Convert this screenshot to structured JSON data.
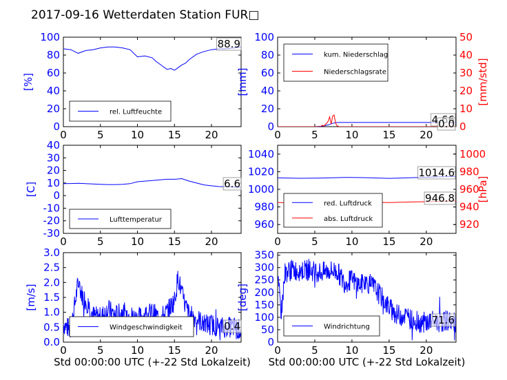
{
  "title": "2017-09-16 Wetterdaten Station FUR□",
  "colors": {
    "blue": "#0000ff",
    "red": "#ff0000",
    "black": "#000000"
  },
  "chart_data": [
    {
      "type": "line",
      "ylabel": "[%]",
      "xlim": [
        0,
        24
      ],
      "ylim": [
        0,
        100
      ],
      "xticks": [
        0,
        5,
        10,
        15,
        20
      ],
      "yticks": [
        0,
        20,
        40,
        60,
        80,
        100
      ],
      "legend": {
        "placement": "lower-left",
        "entries": [
          "rel. Luftfeuchte"
        ]
      },
      "last_value": "88.9",
      "series": [
        {
          "name": "rel. Luftfeuchte",
          "color": "#0000ff",
          "x": [
            0,
            1,
            2,
            3,
            4,
            5,
            6,
            7,
            8,
            9,
            10,
            11,
            12,
            12.5,
            13,
            13.5,
            14,
            14.5,
            15,
            15.5,
            16,
            16.5,
            17,
            18,
            19,
            20,
            21,
            22,
            23,
            24
          ],
          "y": [
            87,
            86,
            82,
            85,
            86,
            88,
            89,
            89,
            88,
            86,
            78,
            79,
            77,
            73,
            70,
            67,
            64,
            65,
            63,
            66,
            69,
            71,
            75,
            81,
            84,
            86,
            87,
            87,
            88,
            88.9
          ]
        }
      ]
    },
    {
      "type": "line",
      "ylabel": "[mm]",
      "y2label": "[mm/std]",
      "xlim": [
        0,
        24
      ],
      "ylim": [
        0,
        100
      ],
      "y2lim": [
        0,
        50
      ],
      "xticks": [
        0,
        5,
        10,
        15,
        20
      ],
      "yticks": [
        0,
        20,
        40,
        60,
        80,
        100
      ],
      "y2ticks": [
        0,
        10,
        20,
        30,
        40,
        50
      ],
      "legend": {
        "placement": "upper-left",
        "entries": [
          "kum. Niederschlag",
          "Niederschlagsrate"
        ]
      },
      "last_values": [
        "4.66",
        "0.0"
      ],
      "series": [
        {
          "name": "kum. Niederschlag",
          "color": "#0000ff",
          "axis": "left",
          "x": [
            0,
            5,
            6,
            6.5,
            7,
            7.5,
            8,
            24
          ],
          "y": [
            0,
            0,
            0.5,
            1.5,
            2.5,
            4,
            4.66,
            4.66
          ]
        },
        {
          "name": "Niederschlagsrate",
          "color": "#ff0000",
          "axis": "right",
          "x": [
            0,
            5,
            5.8,
            6,
            6.2,
            6.5,
            6.8,
            7,
            7.2,
            7.4,
            7.6,
            7.8,
            8,
            8.3,
            24
          ],
          "y": [
            0,
            0,
            0,
            0.8,
            0.3,
            1.5,
            3,
            5.5,
            1.5,
            5.8,
            6.5,
            2,
            0.5,
            0,
            0
          ]
        }
      ]
    },
    {
      "type": "line",
      "ylabel": "[C]",
      "xlim": [
        0,
        24
      ],
      "ylim": [
        -30,
        40
      ],
      "xticks": [
        0,
        5,
        10,
        15,
        20
      ],
      "yticks": [
        -30,
        -20,
        -10,
        0,
        10,
        20,
        30,
        40
      ],
      "legend": {
        "placement": "lower-left",
        "entries": [
          "Lufttemperatur"
        ]
      },
      "last_value": "6.6",
      "series": [
        {
          "name": "Lufttemperatur",
          "color": "#0000ff",
          "x": [
            0,
            1,
            2,
            3,
            4,
            5,
            6,
            7,
            8,
            9,
            10,
            11,
            12,
            13,
            14,
            15,
            16,
            17,
            18,
            19,
            20,
            21,
            22,
            23,
            24
          ],
          "y": [
            9.5,
            9.6,
            9.8,
            9.5,
            9.2,
            9,
            8.8,
            8.8,
            9,
            9.5,
            11,
            11.5,
            12,
            12.5,
            13,
            13,
            13.5,
            11.5,
            10,
            8.5,
            7.8,
            7.2,
            7,
            6.8,
            6.6
          ]
        }
      ]
    },
    {
      "type": "line",
      "ylabel": "",
      "y2label": "[hPa]",
      "xlim": [
        0,
        24
      ],
      "ylim": [
        950,
        1050
      ],
      "y2lim": [
        910,
        1010
      ],
      "xticks": [
        0,
        5,
        10,
        15,
        20
      ],
      "yticks": [
        960,
        980,
        1000,
        1020,
        1040
      ],
      "y2ticks": [
        920,
        940,
        960,
        980,
        1000
      ],
      "legend": {
        "placement": "lower-left",
        "entries": [
          "red. Luftdruck",
          "abs. Luftdruck"
        ]
      },
      "last_values": [
        "1014.6",
        "946.8"
      ],
      "series": [
        {
          "name": "red. Luftdruck",
          "color": "#0000ff",
          "axis": "left",
          "x": [
            0,
            3,
            6,
            9,
            12,
            15,
            18,
            21,
            24
          ],
          "y": [
            1013,
            1012.5,
            1012.8,
            1013.5,
            1013.2,
            1012.4,
            1013.2,
            1014,
            1014.6
          ]
        },
        {
          "name": "abs. Luftdruck",
          "color": "#ff0000",
          "axis": "right",
          "x": [
            0,
            3,
            6,
            9,
            12,
            15,
            18,
            21,
            24
          ],
          "y": [
            945,
            944.8,
            945,
            945.6,
            945.4,
            944.9,
            945.6,
            946.2,
            946.8
          ]
        }
      ]
    },
    {
      "type": "line",
      "ylabel": "[m/s]",
      "xlabel": "Std 00:00:00 UTC (+-22 Std Lokalzeit)",
      "xlim": [
        0,
        24
      ],
      "ylim": [
        0,
        3
      ],
      "xticks": [
        0,
        5,
        10,
        15,
        20
      ],
      "yticks": [
        0.0,
        0.5,
        1.0,
        1.5,
        2.0,
        2.5,
        3.0
      ],
      "legend": {
        "placement": "lower-center",
        "entries": [
          "Windgeschwindigkeit"
        ]
      },
      "last_value": "0.4",
      "series": [
        {
          "name": "Windgeschwindigkeit",
          "color": "#0000ff",
          "noisy": true,
          "x": [
            0,
            1,
            1.5,
            2,
            2.5,
            3,
            3.5,
            4,
            5,
            6,
            7,
            8,
            9,
            10,
            11,
            12,
            13,
            14,
            15,
            15.5,
            16,
            16.5,
            17,
            18,
            19,
            20,
            21,
            22,
            23,
            24
          ],
          "y": [
            0.6,
            0.4,
            1.2,
            2.0,
            1.6,
            1.4,
            1.2,
            0.9,
            0.8,
            1.1,
            0.9,
            1.0,
            0.9,
            0.8,
            0.9,
            1.0,
            0.8,
            1.0,
            1.4,
            2.2,
            1.6,
            1.2,
            0.9,
            0.8,
            0.6,
            0.6,
            0.5,
            0.5,
            0.5,
            0.4
          ]
        }
      ]
    },
    {
      "type": "line",
      "ylabel": "[deg]",
      "xlabel": "Std 00:00:00 UTC (+-22 Std Lokalzeit)",
      "xlim": [
        0,
        24
      ],
      "ylim": [
        0,
        360
      ],
      "xticks": [
        0,
        5,
        10,
        15,
        20
      ],
      "yticks": [
        0,
        50,
        100,
        150,
        200,
        250,
        300,
        350
      ],
      "legend": {
        "placement": "lower-left",
        "entries": [
          "Windrichtung"
        ]
      },
      "last_value": "71.6",
      "series": [
        {
          "name": "Windrichtung",
          "color": "#0000ff",
          "noisy": true,
          "x": [
            0,
            0.5,
            1,
            2,
            3,
            4,
            5,
            6,
            7,
            8,
            9,
            10,
            11,
            12,
            13,
            14,
            15,
            16,
            17,
            18,
            19,
            20,
            21,
            22,
            23,
            24
          ],
          "y": [
            250,
            120,
            280,
            290,
            288,
            290,
            285,
            280,
            288,
            285,
            240,
            250,
            230,
            240,
            220,
            180,
            140,
            110,
            110,
            90,
            80,
            80,
            85,
            80,
            90,
            71.6
          ]
        }
      ]
    }
  ]
}
